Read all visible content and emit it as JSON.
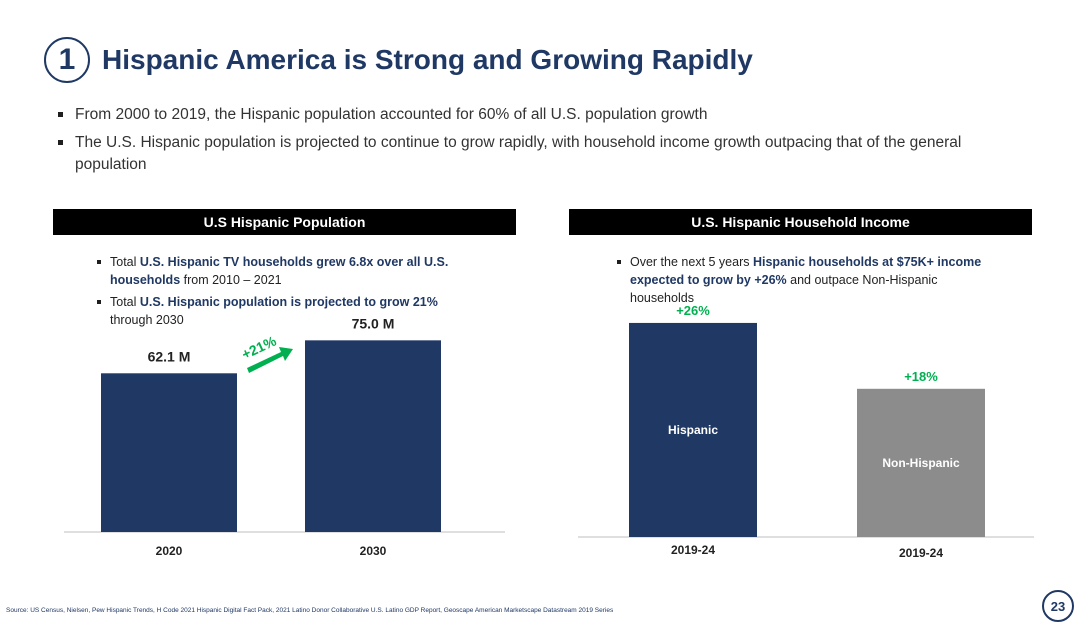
{
  "header": {
    "number": "1",
    "title": "Hispanic America is Strong and Growing Rapidly"
  },
  "bullets": [
    "From 2000 to 2019, the Hispanic population accounted for 60% of all U.S. population growth",
    "The U.S. Hispanic population is projected to continue to grow rapidly, with household income growth outpacing that of the general population"
  ],
  "left_panel": {
    "header": "U.S Hispanic Population",
    "bullet1": {
      "pre": "Total ",
      "bold": "U.S. Hispanic TV households grew 6.8x over all U.S. households",
      "post": " from 2010 – 2021"
    },
    "bullet2": {
      "pre": "Total ",
      "bold": "U.S. Hispanic population is projected to grow 21%",
      "post": " through 2030"
    },
    "arrow_label": "+21%"
  },
  "right_panel": {
    "header": "U.S. Hispanic Household Income",
    "bullet1": {
      "pre": "Over the next 5 years ",
      "bold": "Hispanic households at $75K+ income expected to grow by +26%",
      "post": " and outpace Non-Hispanic households"
    }
  },
  "colors": {
    "navy": "#1f3864",
    "gray": "#8c8c8c",
    "green": "#00b050"
  },
  "chart_data": [
    {
      "type": "bar",
      "title": "U.S Hispanic Population",
      "categories": [
        "2020",
        "2030"
      ],
      "values": [
        62.1,
        75.0
      ],
      "value_labels": [
        "62.1 M",
        "75.0 M"
      ],
      "unit": "M",
      "ylim": [
        0,
        90
      ]
    },
    {
      "type": "bar",
      "title": "U.S. Hispanic Household Income",
      "categories": [
        "2019-24",
        "2019-24"
      ],
      "series_names": [
        "Hispanic",
        "Non-Hispanic"
      ],
      "values": [
        26,
        18
      ],
      "value_labels": [
        "+26%",
        "+18%"
      ],
      "ylim": [
        0,
        30
      ]
    }
  ],
  "footer": {
    "source": "Source: US Census, Nielsen, Pew Hispanic Trends, H Code 2021 Hispanic Digital Fact Pack, 2021 Latino Donor Collaborative U.S. Latino GDP Report, Geoscape American Marketscape Datastream 2019 Series",
    "page": "23"
  }
}
